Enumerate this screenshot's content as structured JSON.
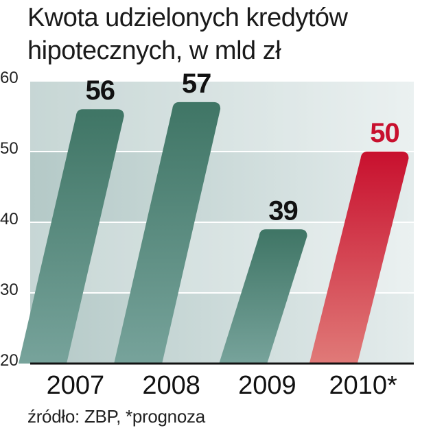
{
  "title_line1": "Kwota udzielonych kredytów",
  "title_line2": "hipotecznych, w mld zł",
  "source": "źródło: ZBP, *prognoza",
  "colors": {
    "actual_top": "#3f7565",
    "actual_bottom": "#77a39b",
    "forecast_top": "#c8102e",
    "forecast_bottom": "#e07a78",
    "label_actual": "#111111",
    "label_forecast": "#c8102e",
    "band_dark": "#b4c9c7",
    "band_light": "#e4ecec"
  },
  "chart_data": {
    "type": "bar",
    "categories": [
      "2007",
      "2008",
      "2009",
      "2010*"
    ],
    "values": [
      56,
      57,
      39,
      50
    ],
    "forecast": [
      false,
      false,
      false,
      true
    ],
    "data_labels": [
      "56",
      "57",
      "39",
      "50"
    ],
    "ylim": [
      20,
      60
    ],
    "yticks": [
      20,
      30,
      40,
      50,
      60
    ],
    "ytick_labels": [
      "20",
      "30",
      "40",
      "50",
      "60"
    ],
    "grid": true
  }
}
